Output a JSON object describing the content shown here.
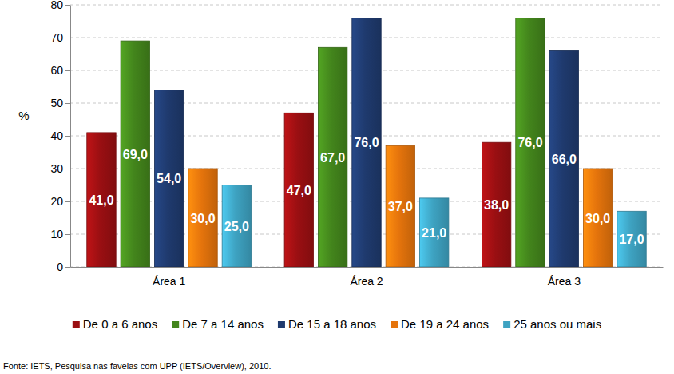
{
  "chart_data": {
    "type": "bar",
    "y_label": "%",
    "source": "Fonte: IETS, Pesquisa nas favelas com UPP (IETS/Overview), 2010.",
    "categories": [
      "Área 1",
      "Área 2",
      "Área 3"
    ],
    "series": [
      {
        "name": "De 0 a 6 anos",
        "color": "#9a0f12",
        "values": [
          41,
          47,
          38
        ],
        "value_labels": [
          "41,0",
          "47,0",
          "38,0"
        ]
      },
      {
        "name": "De 7 a 14 anos",
        "color": "#43851c",
        "values": [
          69,
          67,
          76
        ],
        "value_labels": [
          "69,0",
          "67,0",
          "76,0"
        ]
      },
      {
        "name": "De 15 a 18 anos",
        "color": "#1f3a6e",
        "values": [
          54,
          76,
          66
        ],
        "value_labels": [
          "54,0",
          "76,0",
          "66,0"
        ]
      },
      {
        "name": "De 19 a 24 anos",
        "color": "#e5740c",
        "values": [
          30,
          37,
          30
        ],
        "value_labels": [
          "30,0",
          "37,0",
          "30,0"
        ]
      },
      {
        "name": "25 anos ou mais",
        "color": "#3ea3c2",
        "values": [
          25,
          21,
          17
        ],
        "value_labels": [
          "25,0",
          "21,0",
          "17,0"
        ]
      }
    ],
    "ylim": [
      0,
      80
    ],
    "yticks": [
      0,
      10,
      20,
      30,
      40,
      50,
      60,
      70,
      80
    ],
    "grid": true,
    "data_labels": true,
    "legend": "bottom"
  }
}
